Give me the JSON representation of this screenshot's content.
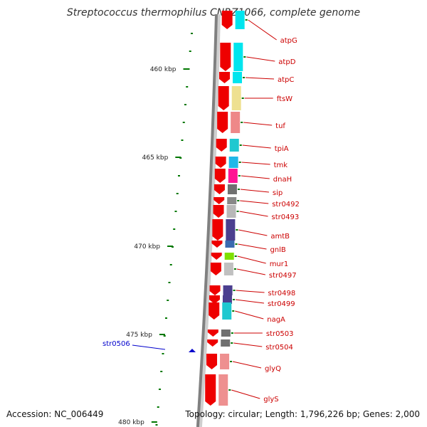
{
  "title": "Streptococcus thermophilus CNRZ1066, complete genome",
  "accession": "Accession: NC_006449",
  "summary": "Topology: circular; Length: 1,796,226 bp; Genes: 2,000",
  "colors": {
    "backbone": "#808080",
    "gene_arrow": "#ee0000",
    "gene_label": "#cc0000",
    "tick": "#007700",
    "highlight": "#0000cc"
  },
  "scale": {
    "unit": "kbp",
    "labels": [
      "460 kbp",
      "465 kbp",
      "470 kbp",
      "475 kbp",
      "480 kbp"
    ]
  },
  "highlight": {
    "label": "str0506",
    "icon": "blue-triangle-icon"
  },
  "genes": [
    {
      "label": "atpG",
      "color": "#00e5ee"
    },
    {
      "label": "atpD",
      "color": "#00e5ee"
    },
    {
      "label": "atpC",
      "color": "#00e5ee"
    },
    {
      "label": "ftsW",
      "color": "#eee090"
    },
    {
      "label": "tuf",
      "color": "#ee8888"
    },
    {
      "label": "tpiA",
      "color": "#20c8d0"
    },
    {
      "label": "tmk",
      "color": "#20b8e8"
    },
    {
      "label": "dnaH",
      "color": "#ff1493"
    },
    {
      "label": "sip",
      "color": "#707070"
    },
    {
      "label": "str0492",
      "color": "#888888"
    },
    {
      "label": "str0493",
      "color": "#b8b8b8"
    },
    {
      "label": "amtB",
      "color": "#4b3f8f"
    },
    {
      "label": "gnlB",
      "color": "#3a6ab0"
    },
    {
      "label": "mur1",
      "color": "#7fe000"
    },
    {
      "label": "str0497",
      "color": "#c0c0c0"
    },
    {
      "label": "str0498",
      "color": "#4b3f8f"
    },
    {
      "label": "str0499",
      "color": "#4b3f8f"
    },
    {
      "label": "nagA",
      "color": "#20c8d0"
    },
    {
      "label": "str0503",
      "color": "#707070"
    },
    {
      "label": "str0504",
      "color": "#707070"
    },
    {
      "label": "glyQ",
      "color": "#ee9090"
    },
    {
      "label": "glyS",
      "color": "#ee9090"
    }
  ]
}
